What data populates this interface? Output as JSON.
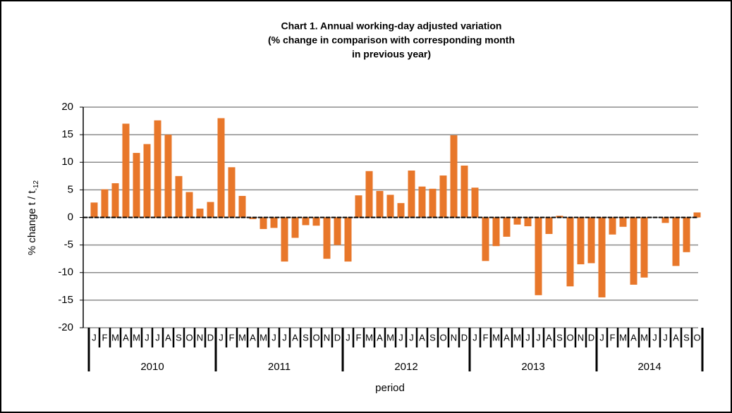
{
  "chart_data": {
    "type": "bar",
    "title": [
      "Chart 1.  Annual working-day adjusted variation",
      "(% change in comparison with corresponding month",
      "in previous year)"
    ],
    "ylabel": "% change t / t",
    "ylabel_subscript": "-12",
    "xlabel": "period",
    "groups": [
      "2010",
      "2011",
      "2012",
      "2013",
      "2014"
    ],
    "categories": [
      "J",
      "F",
      "M",
      "A",
      "M",
      "J",
      "J",
      "A",
      "S",
      "O",
      "N",
      "D",
      "J",
      "F",
      "M",
      "A",
      "M",
      "J",
      "J",
      "A",
      "S",
      "O",
      "N",
      "D",
      "J",
      "F",
      "M",
      "A",
      "M",
      "J",
      "J",
      "A",
      "S",
      "O",
      "N",
      "D",
      "J",
      "F",
      "M",
      "A",
      "M",
      "J",
      "J",
      "A",
      "S",
      "O",
      "N",
      "D",
      "J",
      "F",
      "M",
      "A",
      "M",
      "J",
      "J",
      "A",
      "S",
      "O"
    ],
    "values": [
      2.7,
      5.1,
      6.2,
      17.0,
      11.7,
      13.3,
      17.6,
      15.0,
      7.5,
      4.6,
      1.6,
      2.8,
      18.0,
      9.1,
      3.9,
      -0.3,
      -2.1,
      -1.9,
      -8.0,
      -3.7,
      -1.4,
      -1.5,
      -7.5,
      -5.0,
      -8.0,
      4.0,
      8.4,
      4.8,
      4.1,
      2.6,
      8.5,
      5.6,
      5.2,
      7.6,
      14.9,
      9.4,
      5.4,
      -7.9,
      -5.2,
      -3.5,
      -1.3,
      -1.6,
      -14.1,
      -3.0,
      0.3,
      -12.5,
      -8.5,
      -8.3,
      -14.5,
      -3.1,
      -1.7,
      -12.2,
      -10.9,
      0.0,
      -1.0,
      -8.8,
      -6.3,
      0.9
    ],
    "color": "#e8772a",
    "ylim": [
      -20,
      20
    ],
    "yticks": [
      -20,
      -15,
      -10,
      -5,
      0,
      5,
      10,
      15,
      20
    ],
    "grid": true
  }
}
